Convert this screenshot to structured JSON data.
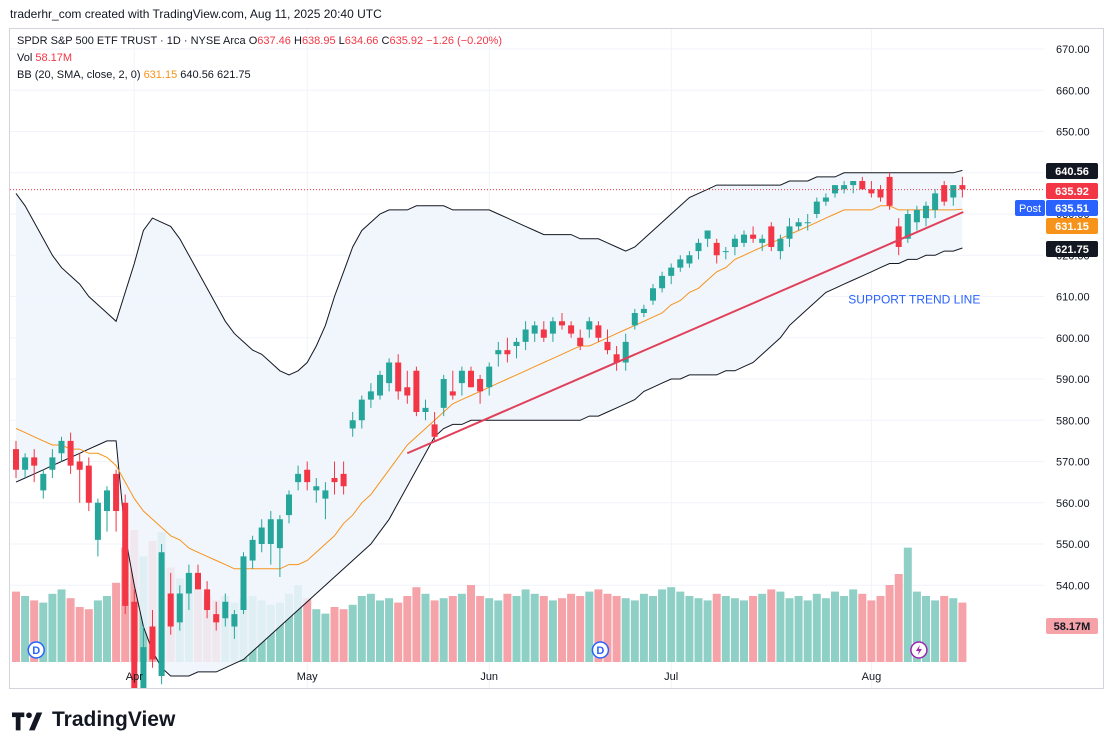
{
  "header": {
    "credit": "traderhr_com created with TradingView.com, Aug 11, 2025 20:40 UTC"
  },
  "legend": {
    "symbol": "SPDR S&P 500 ETF TRUST · 1D · NYSE Arca",
    "o_label": "O",
    "o": "637.46",
    "h_label": "H",
    "h": "638.95",
    "l_label": "L",
    "l": "634.66",
    "c_label": "C",
    "c": "635.92",
    "change": "−1.26 (−0.20%)",
    "vol_label": "Vol",
    "vol": "58.17M",
    "bb_label": "BB (20, SMA, close, 2, 0)",
    "bb_basis": "631.15",
    "bb_upper": "640.56",
    "bb_lower": "621.75"
  },
  "annotation": {
    "text": "SUPPORT TREND LINE"
  },
  "brand": {
    "name": "TradingView"
  },
  "colors": {
    "up": "#26a69a",
    "down": "#f23645",
    "vol_up": "#8fd0c6",
    "vol_down": "#f5a3a8",
    "band_fill": "#eef5fb",
    "band_line": "#131722",
    "basis": "#f7931a",
    "trend": "#e0405a",
    "post": "#2962ff"
  },
  "chart_data": {
    "type": "candlestick",
    "price_ylim": [
      536,
      672
    ],
    "y_ticks": [
      "670.00",
      "660.00",
      "650.00",
      "640.00",
      "630.00",
      "620.00",
      "610.00",
      "600.00",
      "590.00",
      "580.00",
      "570.00",
      "560.00",
      "550.00",
      "540.00"
    ],
    "x_ticks": [
      {
        "label": "Apr",
        "i": 13
      },
      {
        "label": "May",
        "i": 32
      },
      {
        "label": "Jun",
        "i": 52
      },
      {
        "label": "Jul",
        "i": 72
      },
      {
        "label": "Aug",
        "i": 94
      }
    ],
    "price_labels": [
      {
        "text": "640.56",
        "kind": "upper",
        "value": 640.56
      },
      {
        "text": "635.92",
        "kind": "last",
        "value": 635.92
      },
      {
        "text": "635.51",
        "kind": "post",
        "value": 635.51,
        "tag": "Post"
      },
      {
        "text": "631.15",
        "kind": "basis",
        "value": 631.15
      },
      {
        "text": "621.75",
        "kind": "lower",
        "value": 621.75
      }
    ],
    "volume_label": "58.17M",
    "markers": [
      {
        "text": "D",
        "i": 2
      },
      {
        "text": "D",
        "i": 64
      }
    ],
    "events_marker_i": 99,
    "trendline": {
      "start": {
        "i": 43,
        "value": 572
      },
      "end": {
        "i": 103,
        "value": 630
      }
    },
    "candles": [
      {
        "o": 573,
        "h": 575,
        "l": 566,
        "c": 568
      },
      {
        "o": 568,
        "h": 572,
        "l": 566,
        "c": 571
      },
      {
        "o": 571,
        "h": 573,
        "l": 565,
        "c": 569
      },
      {
        "o": 563,
        "h": 568,
        "l": 561,
        "c": 567
      },
      {
        "o": 568,
        "h": 573,
        "l": 566,
        "c": 571
      },
      {
        "o": 572,
        "h": 576,
        "l": 570,
        "c": 575
      },
      {
        "o": 575,
        "h": 577,
        "l": 567,
        "c": 569
      },
      {
        "o": 570,
        "h": 572,
        "l": 560,
        "c": 568
      },
      {
        "o": 569,
        "h": 571,
        "l": 558,
        "c": 560
      },
      {
        "o": 551,
        "h": 561,
        "l": 547,
        "c": 560
      },
      {
        "o": 558,
        "h": 564,
        "l": 553,
        "c": 563
      },
      {
        "o": 567,
        "h": 568,
        "l": 553,
        "c": 558
      },
      {
        "o": 560,
        "h": 562,
        "l": 533,
        "c": 535
      },
      {
        "o": 536,
        "h": 539,
        "l": 508,
        "c": 512
      },
      {
        "o": 510,
        "h": 530,
        "l": 502,
        "c": 525
      },
      {
        "o": 530,
        "h": 534,
        "l": 520,
        "c": 522
      },
      {
        "o": 518,
        "h": 550,
        "l": 516,
        "c": 548
      },
      {
        "o": 538,
        "h": 543,
        "l": 528,
        "c": 530
      },
      {
        "o": 531,
        "h": 540,
        "l": 529,
        "c": 538
      },
      {
        "o": 538,
        "h": 545,
        "l": 534,
        "c": 543
      },
      {
        "o": 543,
        "h": 545,
        "l": 539,
        "c": 539
      },
      {
        "o": 539,
        "h": 541,
        "l": 532,
        "c": 534
      },
      {
        "o": 533,
        "h": 536,
        "l": 529,
        "c": 531
      },
      {
        "o": 532,
        "h": 538,
        "l": 530,
        "c": 536
      },
      {
        "o": 530,
        "h": 534,
        "l": 527,
        "c": 533
      },
      {
        "o": 534,
        "h": 548,
        "l": 533,
        "c": 547
      },
      {
        "o": 546,
        "h": 552,
        "l": 544,
        "c": 551
      },
      {
        "o": 550,
        "h": 556,
        "l": 548,
        "c": 554
      },
      {
        "o": 550,
        "h": 558,
        "l": 545,
        "c": 556
      },
      {
        "o": 549,
        "h": 557,
        "l": 542,
        "c": 556
      },
      {
        "o": 557,
        "h": 563,
        "l": 555,
        "c": 562
      },
      {
        "o": 565,
        "h": 569,
        "l": 563,
        "c": 567
      },
      {
        "o": 568,
        "h": 570,
        "l": 563,
        "c": 565
      },
      {
        "o": 563,
        "h": 566,
        "l": 560,
        "c": 564
      },
      {
        "o": 561,
        "h": 565,
        "l": 556,
        "c": 563
      },
      {
        "o": 566,
        "h": 570,
        "l": 562,
        "c": 565
      },
      {
        "o": 567,
        "h": 570,
        "l": 562,
        "c": 564
      },
      {
        "o": 578,
        "h": 582,
        "l": 576,
        "c": 580
      },
      {
        "o": 580,
        "h": 586,
        "l": 578,
        "c": 585
      },
      {
        "o": 585,
        "h": 589,
        "l": 583,
        "c": 587
      },
      {
        "o": 586,
        "h": 592,
        "l": 585,
        "c": 591
      },
      {
        "o": 589,
        "h": 595,
        "l": 587,
        "c": 594
      },
      {
        "o": 594,
        "h": 596,
        "l": 585,
        "c": 587
      },
      {
        "o": 588,
        "h": 592,
        "l": 584,
        "c": 586
      },
      {
        "o": 592,
        "h": 593,
        "l": 581,
        "c": 582
      },
      {
        "o": 582,
        "h": 585,
        "l": 580,
        "c": 583
      },
      {
        "o": 579,
        "h": 582,
        "l": 575,
        "c": 576
      },
      {
        "o": 583,
        "h": 591,
        "l": 581,
        "c": 590
      },
      {
        "o": 587,
        "h": 592,
        "l": 585,
        "c": 586
      },
      {
        "o": 589,
        "h": 593,
        "l": 586,
        "c": 592
      },
      {
        "o": 592,
        "h": 593,
        "l": 588,
        "c": 588
      },
      {
        "o": 590,
        "h": 591,
        "l": 584,
        "c": 587
      },
      {
        "o": 588,
        "h": 594,
        "l": 586,
        "c": 593
      },
      {
        "o": 596,
        "h": 599,
        "l": 593,
        "c": 597
      },
      {
        "o": 597,
        "h": 600,
        "l": 594,
        "c": 596
      },
      {
        "o": 598,
        "h": 600,
        "l": 595,
        "c": 599
      },
      {
        "o": 599,
        "h": 604,
        "l": 597,
        "c": 602
      },
      {
        "o": 601,
        "h": 604,
        "l": 599,
        "c": 603
      },
      {
        "o": 602,
        "h": 604,
        "l": 599,
        "c": 600
      },
      {
        "o": 601,
        "h": 605,
        "l": 599,
        "c": 604
      },
      {
        "o": 604,
        "h": 606,
        "l": 602,
        "c": 603
      },
      {
        "o": 603,
        "h": 604,
        "l": 600,
        "c": 601
      },
      {
        "o": 600,
        "h": 602,
        "l": 597,
        "c": 598
      },
      {
        "o": 602,
        "h": 605,
        "l": 600,
        "c": 604
      },
      {
        "o": 603,
        "h": 604,
        "l": 599,
        "c": 600
      },
      {
        "o": 599,
        "h": 602,
        "l": 596,
        "c": 597
      },
      {
        "o": 596,
        "h": 598,
        "l": 592,
        "c": 594
      },
      {
        "o": 594,
        "h": 601,
        "l": 592,
        "c": 599
      },
      {
        "o": 603,
        "h": 607,
        "l": 602,
        "c": 606
      },
      {
        "o": 606,
        "h": 608,
        "l": 605,
        "c": 607
      },
      {
        "o": 609,
        "h": 613,
        "l": 608,
        "c": 612
      },
      {
        "o": 612,
        "h": 616,
        "l": 611,
        "c": 615
      },
      {
        "o": 615,
        "h": 618,
        "l": 613,
        "c": 617
      },
      {
        "o": 617,
        "h": 620,
        "l": 616,
        "c": 619
      },
      {
        "o": 618,
        "h": 621,
        "l": 617,
        "c": 620
      },
      {
        "o": 621,
        "h": 624,
        "l": 619,
        "c": 623
      },
      {
        "o": 624,
        "h": 626,
        "l": 622,
        "c": 626
      },
      {
        "o": 623,
        "h": 624,
        "l": 618,
        "c": 620
      },
      {
        "o": 621,
        "h": 622,
        "l": 619,
        "c": 621
      },
      {
        "o": 622,
        "h": 625,
        "l": 620,
        "c": 624
      },
      {
        "o": 623,
        "h": 626,
        "l": 622,
        "c": 625
      },
      {
        "o": 625,
        "h": 627,
        "l": 623,
        "c": 624
      },
      {
        "o": 623,
        "h": 625,
        "l": 621,
        "c": 624
      },
      {
        "o": 627,
        "h": 628,
        "l": 621,
        "c": 622
      },
      {
        "o": 621,
        "h": 625,
        "l": 619,
        "c": 624
      },
      {
        "o": 624,
        "h": 629,
        "l": 622,
        "c": 627
      },
      {
        "o": 627,
        "h": 629,
        "l": 626,
        "c": 628
      },
      {
        "o": 628,
        "h": 630,
        "l": 626,
        "c": 628
      },
      {
        "o": 630,
        "h": 634,
        "l": 629,
        "c": 633
      },
      {
        "o": 633,
        "h": 635,
        "l": 632,
        "c": 634
      },
      {
        "o": 635,
        "h": 637,
        "l": 634,
        "c": 637
      },
      {
        "o": 636,
        "h": 638,
        "l": 635,
        "c": 637
      },
      {
        "o": 637,
        "h": 638,
        "l": 635,
        "c": 638
      },
      {
        "o": 638,
        "h": 639,
        "l": 636,
        "c": 636
      },
      {
        "o": 636,
        "h": 638,
        "l": 634,
        "c": 635
      },
      {
        "o": 636,
        "h": 637,
        "l": 633,
        "c": 634
      },
      {
        "o": 639,
        "h": 640,
        "l": 631,
        "c": 632
      },
      {
        "o": 627,
        "h": 629,
        "l": 620,
        "c": 622
      },
      {
        "o": 624,
        "h": 631,
        "l": 623,
        "c": 630
      },
      {
        "o": 628,
        "h": 632,
        "l": 626,
        "c": 631
      },
      {
        "o": 629,
        "h": 633,
        "l": 627,
        "c": 632
      },
      {
        "o": 631,
        "h": 636,
        "l": 629,
        "c": 635
      },
      {
        "o": 637,
        "h": 638,
        "l": 632,
        "c": 633
      },
      {
        "o": 634,
        "h": 637,
        "l": 632,
        "c": 637
      },
      {
        "o": 637,
        "h": 639,
        "l": 634,
        "c": 636
      }
    ],
    "volume": [
      32,
      30,
      28,
      27,
      31,
      33,
      29,
      25,
      24,
      28,
      30,
      36,
      52,
      60,
      48,
      55,
      59,
      43,
      38,
      40,
      33,
      30,
      28,
      30,
      27,
      29,
      30,
      28,
      26,
      27,
      31,
      35,
      29,
      24,
      22,
      25,
      24,
      26,
      30,
      31,
      28,
      29,
      27,
      30,
      34,
      31,
      28,
      29,
      30,
      31,
      35,
      30,
      29,
      28,
      31,
      30,
      33,
      31,
      30,
      28,
      29,
      31,
      30,
      32,
      33,
      31,
      30,
      29,
      28,
      31,
      30,
      33,
      34,
      32,
      30,
      29,
      28,
      31,
      30,
      29,
      28,
      30,
      31,
      33,
      32,
      29,
      30,
      28,
      31,
      29,
      32,
      30,
      33,
      31,
      28,
      30,
      35,
      40,
      52,
      32,
      30,
      28,
      30,
      29,
      27
    ],
    "bb_upper": [
      635,
      632,
      628,
      624,
      620,
      617,
      615,
      613,
      610,
      608,
      606,
      604,
      611,
      618,
      626,
      629,
      628,
      627,
      624,
      620,
      616,
      612,
      608,
      604,
      601,
      599,
      597,
      596,
      594,
      592,
      591,
      592,
      594,
      598,
      603,
      610,
      616,
      622,
      626,
      628,
      630,
      631,
      631,
      631,
      632,
      632,
      632,
      632,
      631,
      631,
      631,
      631,
      631,
      630,
      629,
      628,
      627,
      626,
      625,
      625,
      625,
      625,
      624,
      624,
      624,
      623,
      622,
      621,
      622,
      624,
      626,
      628,
      630,
      632,
      634,
      635,
      636,
      637,
      637,
      637,
      637,
      637,
      637,
      637,
      637,
      638,
      638,
      638,
      639,
      639,
      639,
      640,
      640,
      640,
      640,
      640,
      640,
      640,
      640,
      640,
      640,
      640,
      640,
      640,
      640.56
    ],
    "bb_lower": [
      565,
      566,
      567,
      568,
      569,
      570,
      571,
      572,
      573,
      574,
      575,
      575,
      552,
      540,
      530,
      524,
      520,
      518,
      518,
      518,
      519,
      519,
      519,
      520,
      521,
      522,
      524,
      526,
      528,
      530,
      532,
      534,
      536,
      538,
      540,
      542,
      544,
      546,
      548,
      550,
      553,
      556,
      560,
      564,
      568,
      572,
      576,
      578,
      579,
      579,
      580,
      580,
      580,
      580,
      580,
      580,
      580,
      580,
      580,
      580,
      580,
      580,
      580,
      581,
      581,
      582,
      583,
      584,
      585,
      587,
      588,
      589,
      590,
      590,
      591,
      591,
      591,
      591,
      592,
      592,
      593,
      594,
      596,
      598,
      600,
      603,
      605,
      607,
      609,
      611,
      612,
      613,
      614,
      615,
      616,
      617,
      618,
      618,
      619,
      619,
      620,
      620,
      621,
      621,
      621.75
    ],
    "bb_basis": [
      578,
      577,
      576,
      575,
      574,
      574,
      573,
      573,
      572,
      572,
      571,
      569,
      565,
      561,
      558,
      556,
      554,
      552,
      551,
      549,
      548,
      547,
      546,
      545,
      544,
      544,
      544,
      544,
      544,
      544,
      545,
      545,
      546,
      548,
      550,
      552,
      555,
      557,
      560,
      562,
      565,
      568,
      571,
      574,
      576,
      578,
      580,
      582,
      584,
      585,
      586,
      587,
      588,
      589,
      590,
      591,
      592,
      593,
      594,
      595,
      596,
      597,
      598,
      598,
      599,
      600,
      601,
      602,
      603,
      604,
      605,
      606,
      608,
      609,
      611,
      612,
      614,
      616,
      617,
      619,
      620,
      621,
      622,
      623,
      624,
      625,
      626,
      627,
      628,
      629,
      630,
      631,
      631,
      631,
      631,
      632,
      632,
      631,
      631,
      631,
      631,
      631,
      631,
      631,
      631.15
    ]
  }
}
